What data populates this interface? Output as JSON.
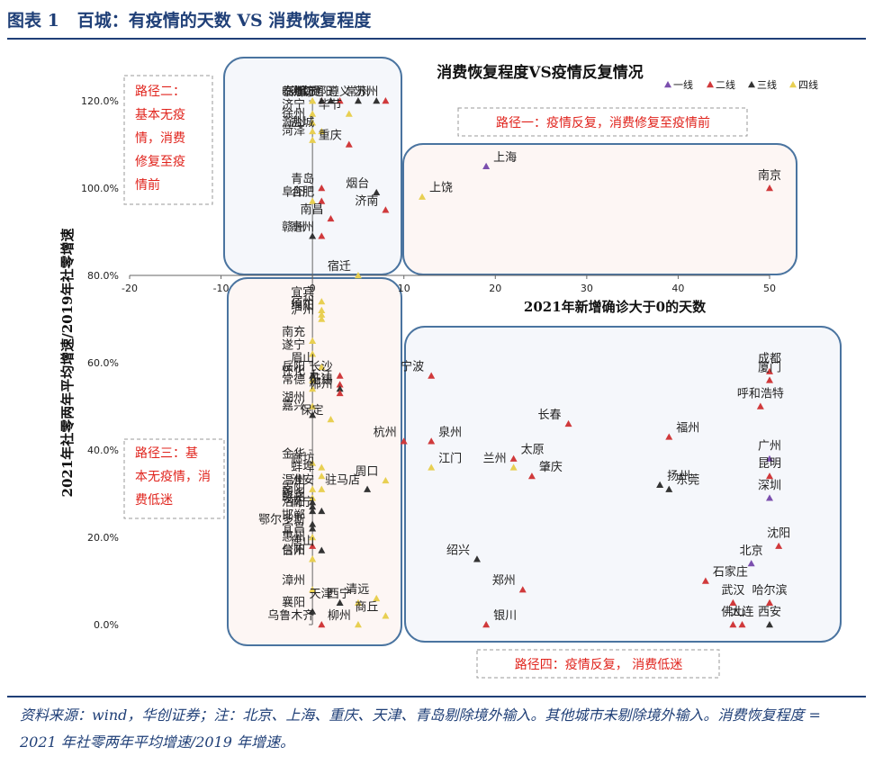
{
  "figure_label": "图表 1",
  "figure_title": "百城：有疫情的天数 VS 消费恢复程度",
  "footnote": "资料来源：wind，华创证券；注：北京、上海、重庆、天津、青岛剔除境外输入。其他城市未剔除境外输入。消费恢复程度 = 2021 年社零两年平均增速/2019 年增速。",
  "colors": {
    "一线": "#7b4fae",
    "二线": "#d0393b",
    "三线": "#333333",
    "四线": "#e8cf52",
    "accent": "#1f3f77",
    "route_text": "#e0231c"
  },
  "chart_data": {
    "type": "scatter",
    "title": "消费恢复程度VS疫情反复情况",
    "xlabel": "2021年新增确诊大于0的天数",
    "ylabel": "2021年社零两年平均增速/2019年社零增速",
    "xlim": [
      -20,
      50
    ],
    "ylim": [
      0,
      1.2
    ],
    "x_ticks": [
      "-20",
      "-10",
      "0",
      "10",
      "20",
      "30",
      "40",
      "50"
    ],
    "y_ticks": [
      "0.0%",
      "20.0%",
      "40.0%",
      "60.0%",
      "80.0%",
      "100.0%",
      "120.0%"
    ],
    "legend": [
      "一线",
      "二线",
      "三线",
      "四线"
    ],
    "legend_position": "top-right",
    "annotations": {
      "route1": "路径一：疫情反复，消费修复至疫情前",
      "route2": "路径二：基本无疫情，消费修复至疫情前",
      "route3": "路径三：基本无疫情，消费低迷",
      "route4": "路径四：疫情反复， 消费低迷"
    },
    "points": [
      {
        "city": "泰州",
        "x": 0,
        "y": 1.2,
        "tier": "四线"
      },
      {
        "city": "海口",
        "x": 1,
        "y": 1.2,
        "tier": "二线"
      },
      {
        "city": "贵阳",
        "x": 3,
        "y": 1.2,
        "tier": "二线"
      },
      {
        "city": "临沂",
        "x": 0,
        "y": 1.2,
        "tier": "四线"
      },
      {
        "city": "苏州",
        "x": 8,
        "y": 1.2,
        "tier": "二线"
      },
      {
        "city": "南通",
        "x": 2,
        "y": 1.2,
        "tier": "三线"
      },
      {
        "city": "潍坊",
        "x": 1,
        "y": 1.2,
        "tier": "三线"
      },
      {
        "city": "遵义",
        "x": 5,
        "y": 1.2,
        "tier": "三线"
      },
      {
        "city": "常州",
        "x": 7,
        "y": 1.2,
        "tier": "三线"
      },
      {
        "city": "济宁",
        "x": 0,
        "y": 1.17,
        "tier": "四线"
      },
      {
        "city": "毕节",
        "x": 4,
        "y": 1.17,
        "tier": "四线"
      },
      {
        "city": "徐州",
        "x": 0,
        "y": 1.15,
        "tier": "四线"
      },
      {
        "city": "滁州",
        "x": 0,
        "y": 1.13,
        "tier": "四线"
      },
      {
        "city": "盐城",
        "x": 1,
        "y": 1.13,
        "tier": "四线"
      },
      {
        "city": "菏泽",
        "x": 0,
        "y": 1.11,
        "tier": "四线"
      },
      {
        "city": "重庆",
        "x": 4,
        "y": 1.1,
        "tier": "二线"
      },
      {
        "city": "上海",
        "x": 19,
        "y": 1.05,
        "tier": "一线"
      },
      {
        "city": "南京",
        "x": 50,
        "y": 1.0,
        "tier": "二线"
      },
      {
        "city": "青岛",
        "x": 1,
        "y": 1.0,
        "tier": "二线"
      },
      {
        "city": "烟台",
        "x": 7,
        "y": 0.99,
        "tier": "三线"
      },
      {
        "city": "上饶",
        "x": 12,
        "y": 0.98,
        "tier": "四线"
      },
      {
        "city": "阜阳",
        "x": 0,
        "y": 0.97,
        "tier": "四线"
      },
      {
        "city": "合肥",
        "x": 1,
        "y": 0.97,
        "tier": "二线"
      },
      {
        "city": "济南",
        "x": 8,
        "y": 0.95,
        "tier": "二线"
      },
      {
        "city": "南昌",
        "x": 2,
        "y": 0.93,
        "tier": "二线"
      },
      {
        "city": "赣州",
        "x": 0,
        "y": 0.89,
        "tier": "三线"
      },
      {
        "city": "亳州",
        "x": 1,
        "y": 0.89,
        "tier": "二线"
      },
      {
        "city": "宿迁",
        "x": 5,
        "y": 0.8,
        "tier": "四线"
      },
      {
        "city": "宜宾",
        "x": 1,
        "y": 0.74,
        "tier": "四线"
      },
      {
        "city": "宿州",
        "x": 1,
        "y": 0.72,
        "tier": "四线"
      },
      {
        "city": "绵阳",
        "x": 1,
        "y": 0.71,
        "tier": "四线"
      },
      {
        "city": "泸州",
        "x": 1,
        "y": 0.7,
        "tier": "四线"
      },
      {
        "city": "南充",
        "x": 0,
        "y": 0.65,
        "tier": "四线"
      },
      {
        "city": "遂宁",
        "x": 0,
        "y": 0.62,
        "tier": "四线"
      },
      {
        "city": "眉山",
        "x": 1,
        "y": 0.59,
        "tier": "四线"
      },
      {
        "city": "长沙",
        "x": 3,
        "y": 0.57,
        "tier": "二线"
      },
      {
        "city": "岳阳",
        "x": 0,
        "y": 0.57,
        "tier": "三线"
      },
      {
        "city": "怀化",
        "x": 0,
        "y": 0.56,
        "tier": "四线"
      },
      {
        "city": "九江",
        "x": 3,
        "y": 0.55,
        "tier": "二线"
      },
      {
        "city": "常德",
        "x": 0,
        "y": 0.54,
        "tier": "四线"
      },
      {
        "city": "无锡",
        "x": 3,
        "y": 0.54,
        "tier": "三线"
      },
      {
        "city": "郴州",
        "x": 3,
        "y": 0.53,
        "tier": "二线"
      },
      {
        "city": "湖州",
        "x": 0,
        "y": 0.5,
        "tier": "四线"
      },
      {
        "city": "嘉兴",
        "x": 0,
        "y": 0.48,
        "tier": "三线"
      },
      {
        "city": "保定",
        "x": 2,
        "y": 0.47,
        "tier": "四线"
      },
      {
        "city": "杭州",
        "x": 10,
        "y": 0.42,
        "tier": "二线"
      },
      {
        "city": "泉州",
        "x": 13,
        "y": 0.42,
        "tier": "二线"
      },
      {
        "city": "成都",
        "x": 50,
        "y": 0.58,
        "tier": "二线"
      },
      {
        "city": "厦门",
        "x": 50,
        "y": 0.56,
        "tier": "二线"
      },
      {
        "city": "宁波",
        "x": 13,
        "y": 0.57,
        "tier": "二线"
      },
      {
        "city": "呼和浩特",
        "x": 49,
        "y": 0.5,
        "tier": "二线"
      },
      {
        "city": "长春",
        "x": 28,
        "y": 0.46,
        "tier": "二线"
      },
      {
        "city": "福州",
        "x": 39,
        "y": 0.43,
        "tier": "二线"
      },
      {
        "city": "广州",
        "x": 50,
        "y": 0.38,
        "tier": "一线"
      },
      {
        "city": "太原",
        "x": 22,
        "y": 0.38,
        "tier": "二线"
      },
      {
        "city": "兰州",
        "x": 22,
        "y": 0.36,
        "tier": "四线"
      },
      {
        "city": "江门",
        "x": 13,
        "y": 0.36,
        "tier": "四线"
      },
      {
        "city": "昆明",
        "x": 50,
        "y": 0.34,
        "tier": "二线"
      },
      {
        "city": "肇庆",
        "x": 24,
        "y": 0.34,
        "tier": "二线"
      },
      {
        "city": "扬州",
        "x": 38,
        "y": 0.32,
        "tier": "三线"
      },
      {
        "city": "东莞",
        "x": 39,
        "y": 0.31,
        "tier": "三线"
      },
      {
        "city": "深圳",
        "x": 50,
        "y": 0.29,
        "tier": "一线"
      },
      {
        "city": "金华",
        "x": 0,
        "y": 0.37,
        "tier": "四线"
      },
      {
        "city": "廊坊",
        "x": 1,
        "y": 0.36,
        "tier": "四线"
      },
      {
        "city": "蚌埠",
        "x": 1,
        "y": 0.34,
        "tier": "四线"
      },
      {
        "city": "周口",
        "x": 8,
        "y": 0.33,
        "tier": "四线"
      },
      {
        "city": "温州",
        "x": 0,
        "y": 0.31,
        "tier": "四线"
      },
      {
        "city": "淮安",
        "x": 1,
        "y": 0.31,
        "tier": "四线"
      },
      {
        "city": "驻马店",
        "x": 6,
        "y": 0.31,
        "tier": "三线"
      },
      {
        "city": "南阳",
        "x": 0,
        "y": 0.29,
        "tier": "四线"
      },
      {
        "city": "新乡",
        "x": 0,
        "y": 0.28,
        "tier": "三线"
      },
      {
        "city": "赣州",
        "x": 0,
        "y": 0.27,
        "tier": "三线"
      },
      {
        "city": "洛阳",
        "x": 0,
        "y": 0.26,
        "tier": "三线"
      },
      {
        "city": "南宁",
        "x": 1,
        "y": 0.26,
        "tier": "三线"
      },
      {
        "city": "邯郸",
        "x": 0,
        "y": 0.23,
        "tier": "三线"
      },
      {
        "city": "鄂尔多斯",
        "x": 0,
        "y": 0.22,
        "tier": "三线"
      },
      {
        "city": "宜昌",
        "x": 0,
        "y": 0.2,
        "tier": "四线"
      },
      {
        "city": "惠州",
        "x": 0,
        "y": 0.18,
        "tier": "二线"
      },
      {
        "city": "唐山",
        "x": 1,
        "y": 0.17,
        "tier": "三线"
      },
      {
        "city": "台州",
        "x": 0,
        "y": 0.15,
        "tier": "四线"
      },
      {
        "city": "信阳",
        "x": 0,
        "y": 0.15,
        "tier": "四线"
      },
      {
        "city": "绍兴",
        "x": 18,
        "y": 0.15,
        "tier": "三线"
      },
      {
        "city": "沈阳",
        "x": 51,
        "y": 0.18,
        "tier": "二线"
      },
      {
        "city": "北京",
        "x": 48,
        "y": 0.14,
        "tier": "一线"
      },
      {
        "city": "石家庄",
        "x": 43,
        "y": 0.1,
        "tier": "二线"
      },
      {
        "city": "郑州",
        "x": 23,
        "y": 0.08,
        "tier": "二线"
      },
      {
        "city": "漳州",
        "x": 0,
        "y": 0.08,
        "tier": "四线"
      },
      {
        "city": "天津",
        "x": 3,
        "y": 0.05,
        "tier": "三线"
      },
      {
        "city": "西宁",
        "x": 5,
        "y": 0.05,
        "tier": "四线"
      },
      {
        "city": "清远",
        "x": 7,
        "y": 0.06,
        "tier": "四线"
      },
      {
        "city": "襄阳",
        "x": 0,
        "y": 0.03,
        "tier": "三线"
      },
      {
        "city": "商丘",
        "x": 8,
        "y": 0.02,
        "tier": "四线"
      },
      {
        "city": "乌鲁木齐",
        "x": 1,
        "y": 0.0,
        "tier": "二线"
      },
      {
        "city": "柳州",
        "x": 5,
        "y": 0.0,
        "tier": "四线"
      },
      {
        "city": "银川",
        "x": 19,
        "y": 0.0,
        "tier": "二线"
      },
      {
        "city": "武汉",
        "x": 46,
        "y": 0.05,
        "tier": "二线"
      },
      {
        "city": "哈尔滨",
        "x": 50,
        "y": 0.05,
        "tier": "二线"
      },
      {
        "city": "佛山",
        "x": 46,
        "y": 0.0,
        "tier": "二线"
      },
      {
        "city": "大连",
        "x": 47,
        "y": 0.0,
        "tier": "二线"
      },
      {
        "city": "西安",
        "x": 50,
        "y": 0.0,
        "tier": "三线"
      }
    ]
  }
}
